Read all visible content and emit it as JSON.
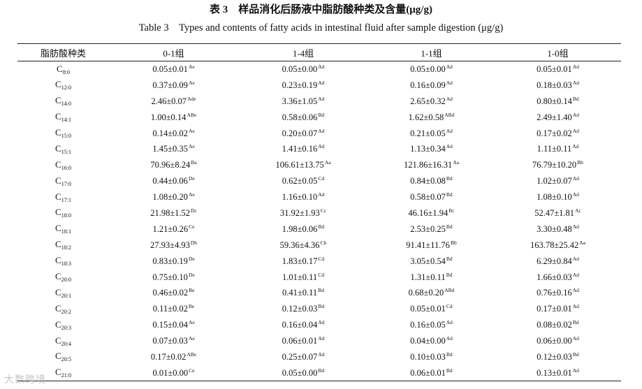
{
  "title_zh": "表 3　样品消化后肠液中脂肪酸种类及含量(μg/g)",
  "title_en": "Table 3　Types and contents of fatty acids in intestinal fluid after sample digestion (μg/g)",
  "headers": [
    "脂肪酸种类",
    "0-1组",
    "1-4组",
    "1-1组",
    "1-0组"
  ],
  "rows": [
    {
      "base": "C",
      "sub": "8:0",
      "cells": [
        {
          "v": "0.05±0.01",
          "s": "Ae"
        },
        {
          "v": "0.05±0.00",
          "s": "Ad"
        },
        {
          "v": "0.05±0.00",
          "s": "Ad"
        },
        {
          "v": "0.05±0.01",
          "s": "Ad"
        }
      ]
    },
    {
      "base": "C",
      "sub": "12:0",
      "cells": [
        {
          "v": "0.37±0.09",
          "s": "Ae"
        },
        {
          "v": "0.23±0.19",
          "s": "Ad"
        },
        {
          "v": "0.16±0.09",
          "s": "Ad"
        },
        {
          "v": "0.18±0.03",
          "s": "Ad"
        }
      ]
    },
    {
      "base": "C",
      "sub": "14:0",
      "cells": [
        {
          "v": "2.46±0.07",
          "s": "Ade"
        },
        {
          "v": "3.36±1.05",
          "s": "Ad"
        },
        {
          "v": "2.65±0.32",
          "s": "Ad"
        },
        {
          "v": "0.80±0.14",
          "s": "Bd"
        }
      ]
    },
    {
      "base": "C",
      "sub": "14:1",
      "cells": [
        {
          "v": "1.00±0.14",
          "s": "ABe"
        },
        {
          "v": "0.58±0.06",
          "s": "Bd"
        },
        {
          "v": "1.62±0.58",
          "s": "ABd"
        },
        {
          "v": "2.49±1.40",
          "s": "Ad"
        }
      ]
    },
    {
      "base": "C",
      "sub": "15:0",
      "cells": [
        {
          "v": "0.14±0.02",
          "s": "Ae"
        },
        {
          "v": "0.20±0.07",
          "s": "Ad"
        },
        {
          "v": "0.21±0.05",
          "s": "Ad"
        },
        {
          "v": "0.17±0.02",
          "s": "Ad"
        }
      ]
    },
    {
      "base": "C",
      "sub": "15:1",
      "cells": [
        {
          "v": "1.45±0.35",
          "s": "Ae"
        },
        {
          "v": "1.41±0.16",
          "s": "Ad"
        },
        {
          "v": "1.13±0.34",
          "s": "Ad"
        },
        {
          "v": "1.11±0.11",
          "s": "Ad"
        }
      ]
    },
    {
      "base": "C",
      "sub": "16:0",
      "cells": [
        {
          "v": "70.96±8.24",
          "s": "Ba"
        },
        {
          "v": "106.61±13.75",
          "s": "Aa"
        },
        {
          "v": "121.86±16.31",
          "s": "Aa"
        },
        {
          "v": "76.79±10.20",
          "s": "Bb"
        }
      ]
    },
    {
      "base": "C",
      "sub": "17:0",
      "cells": [
        {
          "v": "0.44±0.06",
          "s": "De"
        },
        {
          "v": "0.62±0.05",
          "s": "Cd"
        },
        {
          "v": "0.84±0.08",
          "s": "Bd"
        },
        {
          "v": "1.02±0.07",
          "s": "Ad"
        }
      ]
    },
    {
      "base": "C",
      "sub": "17:1",
      "cells": [
        {
          "v": "1.08±0.20",
          "s": "Ae"
        },
        {
          "v": "1.16±0.10",
          "s": "Ad"
        },
        {
          "v": "0.58±0.07",
          "s": "Bd"
        },
        {
          "v": "1.08±0.10",
          "s": "Ad"
        }
      ]
    },
    {
      "base": "C",
      "sub": "18:0",
      "cells": [
        {
          "v": "21.98±1.52",
          "s": "Dc"
        },
        {
          "v": "31.92±1.93",
          "s": "Cc"
        },
        {
          "v": "46.16±1.94",
          "s": "Bc"
        },
        {
          "v": "52.47±1.81",
          "s": "Ac"
        }
      ]
    },
    {
      "base": "C",
      "sub": "18:1",
      "cells": [
        {
          "v": "1.21±0.26",
          "s": "Ce"
        },
        {
          "v": "1.98±0.06",
          "s": "Bd"
        },
        {
          "v": "2.53±0.25",
          "s": "Bd"
        },
        {
          "v": "3.30±0.48",
          "s": "Ad"
        }
      ]
    },
    {
      "base": "C",
      "sub": "18:2",
      "cells": [
        {
          "v": "27.93±4.93",
          "s": "Db"
        },
        {
          "v": "59.36±4.36",
          "s": "Cb"
        },
        {
          "v": "91.41±11.76",
          "s": "Bb"
        },
        {
          "v": "163.78±25.42",
          "s": "Aa"
        }
      ]
    },
    {
      "base": "C",
      "sub": "18:3",
      "cells": [
        {
          "v": "0.83±0.19",
          "s": "De"
        },
        {
          "v": "1.83±0.17",
          "s": "Cd"
        },
        {
          "v": "3.05±0.54",
          "s": "Bd"
        },
        {
          "v": "6.29±0.84",
          "s": "Ad"
        }
      ]
    },
    {
      "base": "C",
      "sub": "20:0",
      "cells": [
        {
          "v": "0.75±0.10",
          "s": "De"
        },
        {
          "v": "1.01±0.11",
          "s": "Cd"
        },
        {
          "v": "1.31±0.11",
          "s": "Bd"
        },
        {
          "v": "1.66±0.03",
          "s": "Ad"
        }
      ]
    },
    {
      "base": "C",
      "sub": "20:1",
      "cells": [
        {
          "v": "0.46±0.02",
          "s": "Be"
        },
        {
          "v": "0.41±0.11",
          "s": "Bd"
        },
        {
          "v": "0.68±0.20",
          "s": "ABd"
        },
        {
          "v": "0.76±0.16",
          "s": "Ad"
        }
      ]
    },
    {
      "base": "C",
      "sub": "20:2",
      "cells": [
        {
          "v": "0.11±0.02",
          "s": "Be"
        },
        {
          "v": "0.12±0.03",
          "s": "Bd"
        },
        {
          "v": "0.05±0.01",
          "s": "Cd"
        },
        {
          "v": "0.17±0.01",
          "s": "Ad"
        }
      ]
    },
    {
      "base": "C",
      "sub": "20:3",
      "cells": [
        {
          "v": "0.15±0.04",
          "s": "Ae"
        },
        {
          "v": "0.16±0.04",
          "s": "Ad"
        },
        {
          "v": "0.16±0.05",
          "s": "Ad"
        },
        {
          "v": "0.08±0.02",
          "s": "Bd"
        }
      ]
    },
    {
      "base": "C",
      "sub": "20:4",
      "cells": [
        {
          "v": "0.07±0.03",
          "s": "Ae"
        },
        {
          "v": "0.06±0.01",
          "s": "Ad"
        },
        {
          "v": "0.04±0.00",
          "s": "Ad"
        },
        {
          "v": "0.06±0.00",
          "s": "Ad"
        }
      ]
    },
    {
      "base": "C",
      "sub": "20:5",
      "cells": [
        {
          "v": "0.17±0.02",
          "s": "ABe"
        },
        {
          "v": "0.25±0.07",
          "s": "Ad"
        },
        {
          "v": "0.10±0.03",
          "s": "Bd"
        },
        {
          "v": "0.12±0.03",
          "s": "Bd"
        }
      ]
    },
    {
      "base": "C",
      "sub": "21:0",
      "cells": [
        {
          "v": "0.01±0.00",
          "s": "Ce"
        },
        {
          "v": "0.05±0.00",
          "s": "Bd"
        },
        {
          "v": "0.06±0.01",
          "s": "Bd"
        },
        {
          "v": "0.13±0.01",
          "s": "Ad"
        }
      ]
    }
  ],
  "watermark": "大数跨境"
}
